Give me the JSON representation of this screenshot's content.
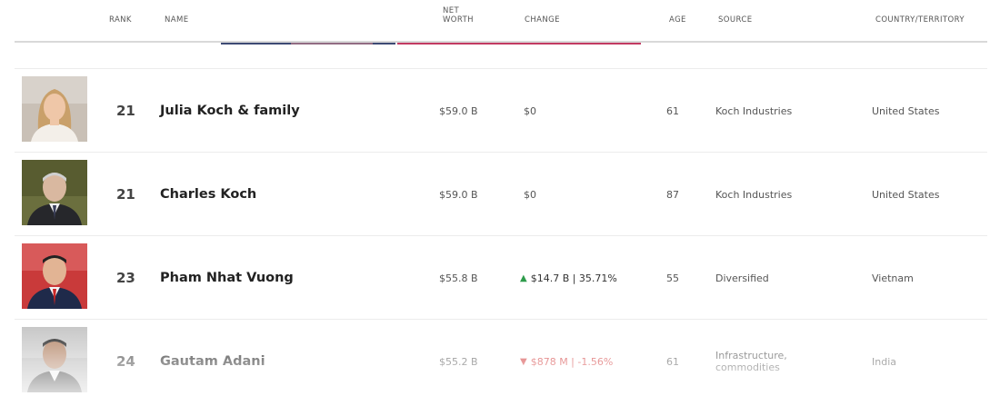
{
  "columns": {
    "rank": "RANK",
    "name": "NAME",
    "net_worth_1": "NET",
    "net_worth_2": "WORTH",
    "change": "CHANGE",
    "age": "AGE",
    "source": "SOURCE",
    "country": "COUNTRY/TERRITORY"
  },
  "rows": [
    {
      "rank": "21",
      "name": "Julia Koch & family",
      "net_worth": "$59.0 B",
      "change_arrow": "",
      "change": "$0",
      "change_dir": "none",
      "age": "61",
      "source": "Koch Industries",
      "source_2": "",
      "country": "United States"
    },
    {
      "rank": "21",
      "name": "Charles Koch",
      "net_worth": "$59.0 B",
      "change_arrow": "",
      "change": "$0",
      "change_dir": "none",
      "age": "87",
      "source": "Koch Industries",
      "source_2": "",
      "country": "United States"
    },
    {
      "rank": "23",
      "name": "Pham Nhat Vuong",
      "net_worth": "$55.8 B",
      "change_arrow": "▲",
      "change": "$14.7 B | 35.71%",
      "change_dir": "up",
      "age": "55",
      "source": "Diversified",
      "source_2": "",
      "country": "Vietnam"
    },
    {
      "rank": "24",
      "name": "Gautam Adani",
      "net_worth": "$55.2 B",
      "change_arrow": "▼",
      "change": "$878 M | -1.56%",
      "change_dir": "down",
      "age": "61",
      "source": "Infrastructure,",
      "source_2": "commodities",
      "country": "India"
    }
  ],
  "colors": {
    "up": "#2e9b4b",
    "down": "#d23a3a"
  }
}
